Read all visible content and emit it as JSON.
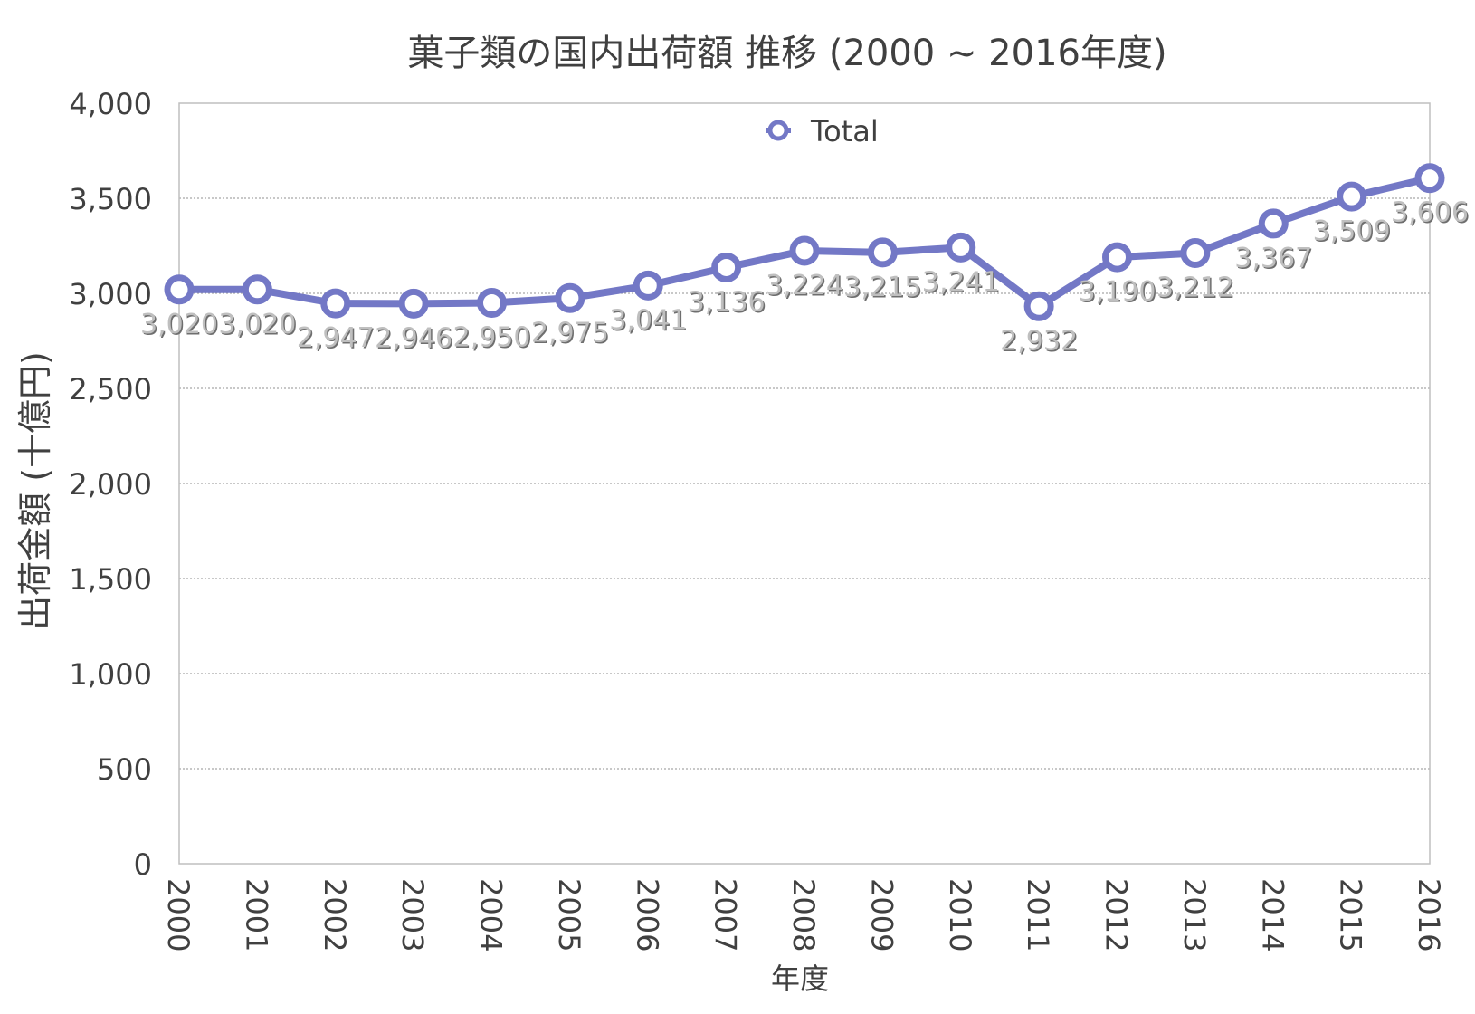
{
  "chart_data": {
    "type": "line",
    "title": "菓子類の国内出荷額 推移 (2000 ~ 2016年度)",
    "xlabel": "年度",
    "ylabel": "出荷金額 (十億円)",
    "categories": [
      "2000",
      "2001",
      "2002",
      "2003",
      "2004",
      "2005",
      "2006",
      "2007",
      "2008",
      "2009",
      "2010",
      "2011",
      "2012",
      "2013",
      "2014",
      "2015",
      "2016"
    ],
    "series": [
      {
        "name": "Total",
        "values": [
          3020,
          3020,
          2947,
          2946,
          2950,
          2975,
          3041,
          3136,
          3224,
          3215,
          3241,
          2932,
          3190,
          3212,
          3367,
          3509,
          3606
        ],
        "labels": [
          "3,020",
          "3,020",
          "2,947",
          "2,946",
          "2,950",
          "2,975",
          "3,041",
          "3,136",
          "3,224",
          "3,215",
          "3,241",
          "2,932",
          "3,190",
          "3,212",
          "3,367",
          "3,509",
          "3,606"
        ]
      }
    ],
    "ylim": [
      0,
      4000
    ],
    "yticks": [
      0,
      500,
      1000,
      1500,
      2000,
      2500,
      3000,
      3500,
      4000
    ],
    "ytick_labels": [
      "0",
      "500",
      "1,000",
      "1,500",
      "2,000",
      "2,500",
      "3,000",
      "3,500",
      "4,000"
    ],
    "grid": true,
    "legend_position": "top-center",
    "series_color": "#7378c6",
    "grid_color": "#a6a6a6",
    "axis_color": "#bfbfbf",
    "text_color": "#404040",
    "data_label_color": "#bfbfbf"
  }
}
